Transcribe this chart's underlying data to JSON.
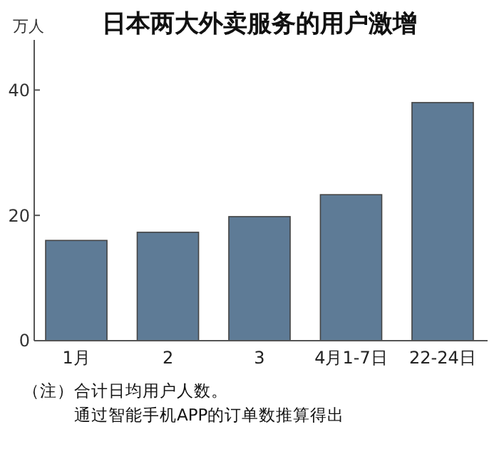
{
  "chart_data": {
    "type": "bar",
    "title": "日本两大外卖服务的用户激增",
    "ylabel": "万人",
    "categories": [
      "1月",
      "2",
      "3",
      "4月1-7日",
      "22-24日"
    ],
    "values": [
      16.0,
      17.3,
      19.8,
      23.3,
      38.0
    ],
    "color": "#5e7b96",
    "ylim": [
      0,
      48
    ],
    "yticks": [
      0,
      20,
      40
    ],
    "grid": false,
    "annotations": [
      "（注）合计日均用户人数。",
      "通过智能手机APP的订单数推算得出"
    ]
  }
}
